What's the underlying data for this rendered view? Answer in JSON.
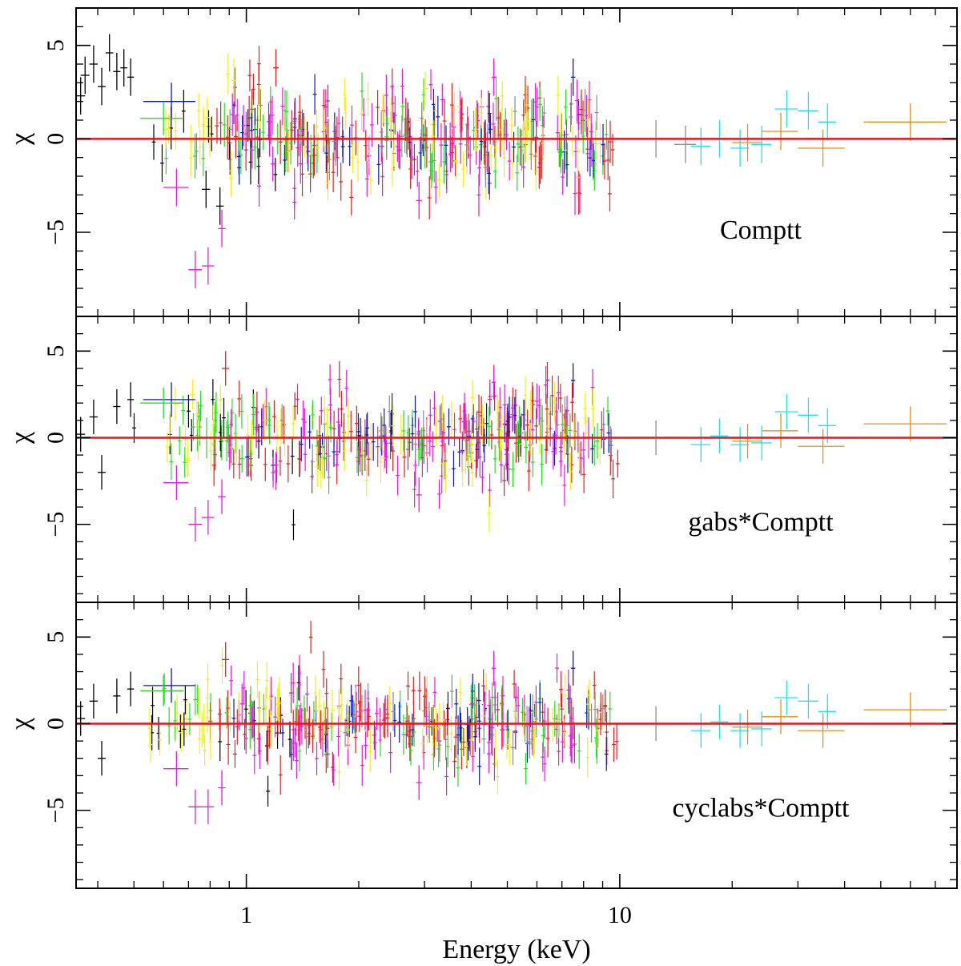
{
  "chart_data": {
    "type": "scatter",
    "xlabel": "Energy (keV)",
    "ylabel": "χ",
    "x_scale": "log",
    "xlim": [
      0.35,
      80
    ],
    "ylim": [
      -9.5,
      7
    ],
    "x_ticks": [
      {
        "value": 1,
        "label": "1"
      },
      {
        "value": 10,
        "label": "10"
      }
    ],
    "y_ticks": [
      {
        "value": 5,
        "label": "5"
      },
      {
        "value": 0,
        "label": "0"
      },
      {
        "value": -5,
        "label": "−5"
      }
    ],
    "model_line_value": 0,
    "model_line_color": "#e8141e",
    "series_colors": {
      "black": "#000000",
      "red": "#ef1b1b",
      "green": "#19e619",
      "blue": "#0a14c8",
      "cyan": "#19e6f0",
      "magenta": "#f014e6",
      "yellow": "#f0f014",
      "orange": "#f08c14",
      "gray": "#8c8c8c"
    },
    "panels": [
      {
        "label": "Comptt",
        "key_points": [
          {
            "series": "black",
            "x": 0.36,
            "y": 2.3,
            "xerr": 0.01,
            "yerr": 1.0
          },
          {
            "series": "black",
            "x": 0.37,
            "y": 3.4,
            "xerr": 0.01,
            "yerr": 1.0
          },
          {
            "series": "black",
            "x": 0.39,
            "y": 4.0,
            "xerr": 0.01,
            "yerr": 1.0
          },
          {
            "series": "black",
            "x": 0.41,
            "y": 2.8,
            "xerr": 0.01,
            "yerr": 1.0
          },
          {
            "series": "black",
            "x": 0.43,
            "y": 4.6,
            "xerr": 0.01,
            "yerr": 1.0
          },
          {
            "series": "black",
            "x": 0.45,
            "y": 3.6,
            "xerr": 0.01,
            "yerr": 1.0
          },
          {
            "series": "black",
            "x": 0.47,
            "y": 3.8,
            "xerr": 0.01,
            "yerr": 1.0
          },
          {
            "series": "black",
            "x": 0.49,
            "y": 3.3,
            "xerr": 0.01,
            "yerr": 1.0
          },
          {
            "series": "black",
            "x": 0.85,
            "y": -3.6,
            "xerr": 0.02,
            "yerr": 1.0
          },
          {
            "series": "black",
            "x": 0.78,
            "y": -2.7,
            "xerr": 0.02,
            "yerr": 1.0
          },
          {
            "series": "blue",
            "x": 0.63,
            "y": 2.0,
            "xerr": 0.1,
            "yerr": 1.0
          },
          {
            "series": "green",
            "x": 0.6,
            "y": 1.1,
            "xerr": 0.08,
            "yerr": 0.9
          },
          {
            "series": "magenta",
            "x": 0.73,
            "y": -7.0,
            "xerr": 0.03,
            "yerr": 1.0
          },
          {
            "series": "magenta",
            "x": 0.79,
            "y": -6.8,
            "xerr": 0.03,
            "yerr": 1.0
          },
          {
            "series": "magenta",
            "x": 0.86,
            "y": -4.8,
            "xerr": 0.02,
            "yerr": 1.0
          },
          {
            "series": "magenta",
            "x": 0.65,
            "y": -2.6,
            "xerr": 0.05,
            "yerr": 1.0
          },
          {
            "series": "red",
            "x": 1.2,
            "y": 3.8,
            "xerr": 0.02,
            "yerr": 1.0
          },
          {
            "series": "magenta",
            "x": 4.6,
            "y": 3.3,
            "xerr": 0.06,
            "yerr": 1.0
          },
          {
            "series": "blue",
            "x": 7.5,
            "y": 3.3,
            "xerr": 0.1,
            "yerr": 1.0
          },
          {
            "series": "magenta",
            "x": 2.9,
            "y": -3.3,
            "xerr": 0.05,
            "yerr": 1.0
          },
          {
            "series": "gray",
            "x": 12.5,
            "y": 0.0,
            "xerr": 2.0,
            "yerr": 1.0
          },
          {
            "series": "gray",
            "x": 15.0,
            "y": -0.3,
            "xerr": 1.0,
            "yerr": 1.0
          },
          {
            "series": "cyan",
            "x": 16.5,
            "y": -0.4,
            "xerr": 1.0,
            "yerr": 1.0
          },
          {
            "series": "cyan",
            "x": 18.5,
            "y": 0.0,
            "xerr": 1.0,
            "yerr": 1.0
          },
          {
            "series": "cyan",
            "x": 21.0,
            "y": -0.5,
            "xerr": 1.2,
            "yerr": 1.0
          },
          {
            "series": "cyan",
            "x": 24.0,
            "y": -0.3,
            "xerr": 1.5,
            "yerr": 1.0
          },
          {
            "series": "cyan",
            "x": 28.0,
            "y": 1.6,
            "xerr": 2.0,
            "yerr": 1.0
          },
          {
            "series": "cyan",
            "x": 32.0,
            "y": 1.5,
            "xerr": 2.0,
            "yerr": 1.0
          },
          {
            "series": "cyan",
            "x": 36.0,
            "y": 0.9,
            "xerr": 2.0,
            "yerr": 1.0
          },
          {
            "series": "orange",
            "x": 22.0,
            "y": -0.2,
            "xerr": 2.0,
            "yerr": 1.0
          },
          {
            "series": "orange",
            "x": 27.0,
            "y": 0.4,
            "xerr": 3.0,
            "yerr": 1.0
          },
          {
            "series": "orange",
            "x": 35.0,
            "y": -0.5,
            "xerr": 5.0,
            "yerr": 1.0
          },
          {
            "series": "orange",
            "x": 60.0,
            "y": 0.9,
            "xerr": 15.0,
            "yerr": 1.0
          }
        ]
      },
      {
        "label": "gabs*Comptt",
        "key_points": [
          {
            "series": "black",
            "x": 0.36,
            "y": 0.2,
            "xerr": 0.01,
            "yerr": 1.0
          },
          {
            "series": "black",
            "x": 0.39,
            "y": 1.2,
            "xerr": 0.01,
            "yerr": 1.0
          },
          {
            "series": "black",
            "x": 0.41,
            "y": -2.0,
            "xerr": 0.01,
            "yerr": 1.0
          },
          {
            "series": "black",
            "x": 0.45,
            "y": 1.8,
            "xerr": 0.01,
            "yerr": 1.0
          },
          {
            "series": "black",
            "x": 0.49,
            "y": 2.2,
            "xerr": 0.01,
            "yerr": 1.0
          },
          {
            "series": "blue",
            "x": 0.63,
            "y": 2.2,
            "xerr": 0.1,
            "yerr": 1.0
          },
          {
            "series": "green",
            "x": 0.6,
            "y": 2.0,
            "xerr": 0.08,
            "yerr": 0.9
          },
          {
            "series": "magenta",
            "x": 0.73,
            "y": -5.0,
            "xerr": 0.03,
            "yerr": 1.0
          },
          {
            "series": "magenta",
            "x": 0.79,
            "y": -4.6,
            "xerr": 0.03,
            "yerr": 1.0
          },
          {
            "series": "magenta",
            "x": 0.86,
            "y": -3.4,
            "xerr": 0.02,
            "yerr": 1.0
          },
          {
            "series": "magenta",
            "x": 0.65,
            "y": -2.6,
            "xerr": 0.05,
            "yerr": 1.0
          },
          {
            "series": "red",
            "x": 0.88,
            "y": 4.0,
            "xerr": 0.02,
            "yerr": 1.0
          },
          {
            "series": "magenta",
            "x": 4.6,
            "y": 3.2,
            "xerr": 0.06,
            "yerr": 1.0
          },
          {
            "series": "blue",
            "x": 7.5,
            "y": 3.3,
            "xerr": 0.1,
            "yerr": 1.0
          },
          {
            "series": "magenta",
            "x": 2.9,
            "y": -3.3,
            "xerr": 0.05,
            "yerr": 1.0
          },
          {
            "series": "gray",
            "x": 12.5,
            "y": 0.0,
            "xerr": 2.0,
            "yerr": 1.0
          },
          {
            "series": "cyan",
            "x": 16.5,
            "y": -0.4,
            "xerr": 1.0,
            "yerr": 1.0
          },
          {
            "series": "cyan",
            "x": 18.5,
            "y": 0.1,
            "xerr": 1.0,
            "yerr": 1.0
          },
          {
            "series": "cyan",
            "x": 21.0,
            "y": -0.4,
            "xerr": 1.2,
            "yerr": 1.0
          },
          {
            "series": "cyan",
            "x": 24.0,
            "y": -0.3,
            "xerr": 1.5,
            "yerr": 1.0
          },
          {
            "series": "cyan",
            "x": 28.0,
            "y": 1.5,
            "xerr": 2.0,
            "yerr": 1.0
          },
          {
            "series": "cyan",
            "x": 32.0,
            "y": 1.3,
            "xerr": 2.0,
            "yerr": 1.0
          },
          {
            "series": "cyan",
            "x": 36.0,
            "y": 0.7,
            "xerr": 2.0,
            "yerr": 1.0
          },
          {
            "series": "orange",
            "x": 22.0,
            "y": -0.2,
            "xerr": 2.0,
            "yerr": 1.0
          },
          {
            "series": "orange",
            "x": 27.0,
            "y": 0.4,
            "xerr": 3.0,
            "yerr": 1.0
          },
          {
            "series": "orange",
            "x": 35.0,
            "y": -0.5,
            "xerr": 5.0,
            "yerr": 1.0
          },
          {
            "series": "orange",
            "x": 60.0,
            "y": 0.8,
            "xerr": 15.0,
            "yerr": 1.0
          }
        ]
      },
      {
        "label": "cyclabs*Comptt",
        "key_points": [
          {
            "series": "black",
            "x": 0.36,
            "y": 0.3,
            "xerr": 0.01,
            "yerr": 1.0
          },
          {
            "series": "black",
            "x": 0.39,
            "y": 1.3,
            "xerr": 0.01,
            "yerr": 1.0
          },
          {
            "series": "black",
            "x": 0.41,
            "y": -2.0,
            "xerr": 0.01,
            "yerr": 1.0
          },
          {
            "series": "black",
            "x": 0.45,
            "y": 1.6,
            "xerr": 0.01,
            "yerr": 1.0
          },
          {
            "series": "black",
            "x": 0.49,
            "y": 2.0,
            "xerr": 0.01,
            "yerr": 1.0
          },
          {
            "series": "blue",
            "x": 0.63,
            "y": 2.2,
            "xerr": 0.1,
            "yerr": 1.0
          },
          {
            "series": "green",
            "x": 0.6,
            "y": 1.9,
            "xerr": 0.08,
            "yerr": 0.9
          },
          {
            "series": "magenta",
            "x": 0.73,
            "y": -4.8,
            "xerr": 0.03,
            "yerr": 1.0
          },
          {
            "series": "magenta",
            "x": 0.79,
            "y": -4.8,
            "xerr": 0.03,
            "yerr": 1.0
          },
          {
            "series": "magenta",
            "x": 0.86,
            "y": -3.7,
            "xerr": 0.02,
            "yerr": 1.0
          },
          {
            "series": "magenta",
            "x": 0.65,
            "y": -2.6,
            "xerr": 0.05,
            "yerr": 1.0
          },
          {
            "series": "red",
            "x": 0.88,
            "y": 3.7,
            "xerr": 0.02,
            "yerr": 1.0
          },
          {
            "series": "magenta",
            "x": 4.6,
            "y": 3.2,
            "xerr": 0.06,
            "yerr": 1.0
          },
          {
            "series": "blue",
            "x": 7.5,
            "y": 3.2,
            "xerr": 0.1,
            "yerr": 1.0
          },
          {
            "series": "magenta",
            "x": 2.9,
            "y": -3.4,
            "xerr": 0.05,
            "yerr": 1.0
          },
          {
            "series": "gray",
            "x": 12.5,
            "y": 0.0,
            "xerr": 2.0,
            "yerr": 1.0
          },
          {
            "series": "cyan",
            "x": 16.5,
            "y": -0.4,
            "xerr": 1.0,
            "yerr": 1.0
          },
          {
            "series": "cyan",
            "x": 18.5,
            "y": 0.1,
            "xerr": 1.0,
            "yerr": 1.0
          },
          {
            "series": "cyan",
            "x": 21.0,
            "y": -0.4,
            "xerr": 1.2,
            "yerr": 1.0
          },
          {
            "series": "cyan",
            "x": 24.0,
            "y": -0.3,
            "xerr": 1.5,
            "yerr": 1.0
          },
          {
            "series": "cyan",
            "x": 28.0,
            "y": 1.5,
            "xerr": 2.0,
            "yerr": 1.0
          },
          {
            "series": "cyan",
            "x": 32.0,
            "y": 1.3,
            "xerr": 2.0,
            "yerr": 1.0
          },
          {
            "series": "cyan",
            "x": 36.0,
            "y": 0.7,
            "xerr": 2.0,
            "yerr": 1.0
          },
          {
            "series": "orange",
            "x": 22.0,
            "y": -0.2,
            "xerr": 2.0,
            "yerr": 1.0
          },
          {
            "series": "orange",
            "x": 27.0,
            "y": 0.4,
            "xerr": 3.0,
            "yerr": 1.0
          },
          {
            "series": "orange",
            "x": 35.0,
            "y": -0.4,
            "xerr": 5.0,
            "yerr": 1.0
          },
          {
            "series": "orange",
            "x": 60.0,
            "y": 0.8,
            "xerr": 15.0,
            "yerr": 1.0
          }
        ]
      }
    ],
    "dense_scatter": [
      {
        "series": "black",
        "xrange": [
          0.5,
          1.5
        ],
        "spread": 1.2,
        "count": 14
      },
      {
        "series": "red",
        "xrange": [
          0.8,
          10.0
        ],
        "spread": 1.3,
        "count": 95
      },
      {
        "series": "green",
        "xrange": [
          0.6,
          9.5
        ],
        "spread": 1.0,
        "count": 60
      },
      {
        "series": "blue",
        "xrange": [
          0.9,
          9.5
        ],
        "spread": 0.9,
        "count": 40
      },
      {
        "series": "magenta",
        "xrange": [
          0.9,
          9.0
        ],
        "spread": 1.4,
        "count": 80
      },
      {
        "series": "yellow",
        "xrange": [
          0.55,
          9.0
        ],
        "spread": 1.3,
        "count": 75
      },
      {
        "series": "gray",
        "xrange": [
          1.2,
          9.5
        ],
        "spread": 1.0,
        "count": 20
      }
    ]
  }
}
